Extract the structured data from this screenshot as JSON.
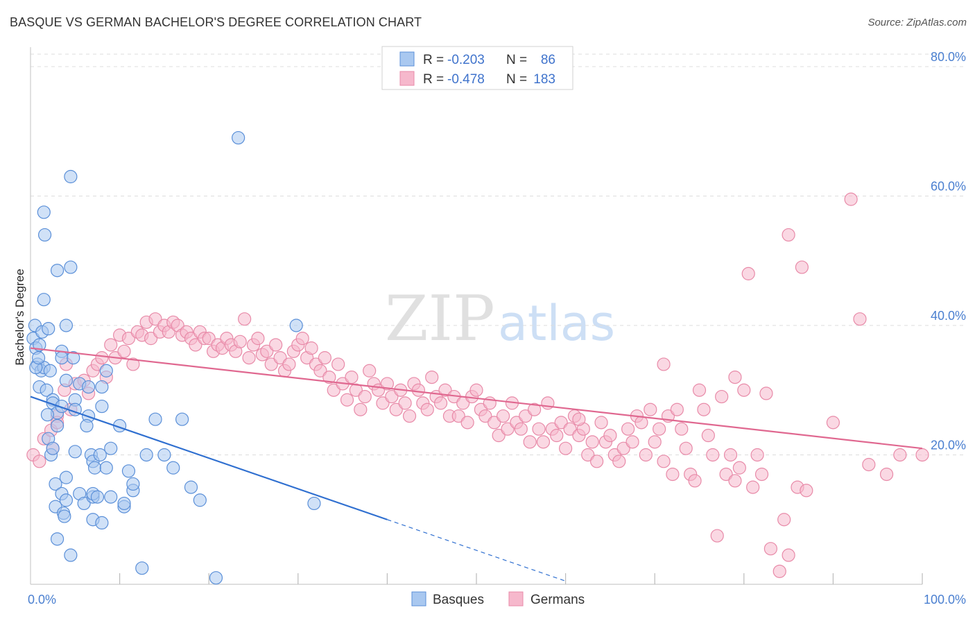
{
  "header": {
    "title": "BASQUE VS GERMAN BACHELOR'S DEGREE CORRELATION CHART",
    "source": "Source: ZipAtlas.com"
  },
  "watermark": {
    "zip": "ZIP",
    "atlas": "atlas"
  },
  "colors": {
    "basques_fill": "#a9c8f0",
    "basques_stroke": "#5a8fd8",
    "basques_line": "#2f6fd0",
    "germans_fill": "#f6b8cc",
    "germans_stroke": "#e88aa8",
    "germans_line": "#e06890",
    "tick_blue": "#4a7fd0"
  },
  "stats_legend": {
    "rows": [
      {
        "r_label": "R =",
        "r_value": "-0.203",
        "n_label": "N =",
        "n_value": "86"
      },
      {
        "r_label": "R =",
        "r_value": "-0.478",
        "n_label": "N =",
        "n_value": "183"
      }
    ]
  },
  "chart_data": {
    "type": "scatter",
    "title": "BASQUE VS GERMAN BACHELOR'S DEGREE CORRELATION CHART",
    "xlabel": "",
    "ylabel": "Bachelor's Degree",
    "xlim": [
      0,
      100
    ],
    "ylim": [
      0,
      83
    ],
    "x_tick_labels": [
      "0.0%",
      "100.0%"
    ],
    "y_ticks": [
      20,
      40,
      60,
      80
    ],
    "y_tick_labels": [
      "20.0%",
      "40.0%",
      "60.0%",
      "80.0%"
    ],
    "grid": true,
    "legend_position": "bottom",
    "series": [
      {
        "name": "Basques",
        "trend": {
          "x0": 0,
          "y0": 29.0,
          "x1": 40,
          "y1": 10.0,
          "dashed_to_x": 60
        },
        "points": [
          [
            0.3,
            38
          ],
          [
            0.5,
            40
          ],
          [
            0.6,
            36.5
          ],
          [
            0.8,
            34
          ],
          [
            1,
            37
          ],
          [
            1,
            30.5
          ],
          [
            1.2,
            33
          ],
          [
            1.3,
            39
          ],
          [
            1.5,
            44
          ],
          [
            1.5,
            33.5
          ],
          [
            1.5,
            57.5
          ],
          [
            1.6,
            54
          ],
          [
            1.8,
            30
          ],
          [
            2,
            39.5
          ],
          [
            2,
            22.5
          ],
          [
            2.2,
            33
          ],
          [
            2.3,
            20
          ],
          [
            2.5,
            28.5
          ],
          [
            2.5,
            28
          ],
          [
            2.5,
            21
          ],
          [
            2.8,
            15.5
          ],
          [
            2.8,
            12
          ],
          [
            3,
            26.5
          ],
          [
            3,
            48.5
          ],
          [
            3,
            24.5
          ],
          [
            3.5,
            36
          ],
          [
            3.5,
            14
          ],
          [
            3.7,
            11
          ],
          [
            3.8,
            10.5
          ],
          [
            4,
            16.5
          ],
          [
            4,
            13
          ],
          [
            4,
            31.5
          ],
          [
            3.5,
            35
          ],
          [
            3.5,
            27.5
          ],
          [
            4,
            40
          ],
          [
            4.5,
            63
          ],
          [
            4.5,
            4.5
          ],
          [
            4.5,
            49
          ],
          [
            5,
            28.5
          ],
          [
            5,
            27
          ],
          [
            5,
            20.5
          ],
          [
            5.5,
            14
          ],
          [
            6,
            12.5
          ],
          [
            5.5,
            31
          ],
          [
            6.5,
            30.5
          ],
          [
            6.5,
            26
          ],
          [
            6.3,
            24.5
          ],
          [
            6.8,
            20
          ],
          [
            7,
            19
          ],
          [
            7.2,
            18
          ],
          [
            7,
            13.5
          ],
          [
            7,
            10
          ],
          [
            7,
            14
          ],
          [
            7.5,
            13.5
          ],
          [
            7.8,
            20
          ],
          [
            8,
            27.5
          ],
          [
            8,
            30.5
          ],
          [
            8.5,
            33
          ],
          [
            8.5,
            18
          ],
          [
            8,
            9.5
          ],
          [
            9,
            21
          ],
          [
            9,
            13.5
          ],
          [
            10,
            24.5
          ],
          [
            10.5,
            12
          ],
          [
            10.5,
            12.5
          ],
          [
            11,
            17.5
          ],
          [
            11.5,
            14.5
          ],
          [
            11.5,
            15.5
          ],
          [
            12.5,
            2.5
          ],
          [
            13,
            20
          ],
          [
            14,
            25.5
          ],
          [
            15,
            20
          ],
          [
            16,
            18
          ],
          [
            17,
            25.5
          ],
          [
            18,
            15
          ],
          [
            19,
            13
          ],
          [
            20.8,
            1
          ],
          [
            23.3,
            69
          ],
          [
            29.8,
            40
          ],
          [
            31.8,
            12.5
          ],
          [
            3,
            7
          ],
          [
            0.6,
            33.5
          ],
          [
            1.9,
            26.2
          ],
          [
            4.8,
            35
          ],
          [
            0.9,
            35
          ]
        ]
      },
      {
        "name": "Germans",
        "trend": {
          "x0": 0,
          "y0": 36.5,
          "x1": 100,
          "y1": 21.0
        },
        "points": [
          [
            0.3,
            20
          ],
          [
            1,
            19
          ],
          [
            1.5,
            22.5
          ],
          [
            2.3,
            23.8
          ],
          [
            2.5,
            21
          ],
          [
            3,
            26
          ],
          [
            3,
            25
          ],
          [
            3.8,
            30
          ],
          [
            4,
            34
          ],
          [
            4.5,
            27
          ],
          [
            5,
            31
          ],
          [
            6,
            31.5
          ],
          [
            6.5,
            29.5
          ],
          [
            7,
            33
          ],
          [
            7.5,
            34
          ],
          [
            8,
            35
          ],
          [
            8.5,
            32
          ],
          [
            9,
            37
          ],
          [
            9.5,
            35
          ],
          [
            10,
            38.5
          ],
          [
            10.5,
            36
          ],
          [
            11,
            38
          ],
          [
            11.5,
            34
          ],
          [
            12,
            39
          ],
          [
            12.5,
            38.5
          ],
          [
            13,
            40.5
          ],
          [
            13.5,
            38
          ],
          [
            14,
            41
          ],
          [
            14.5,
            39
          ],
          [
            15,
            40
          ],
          [
            15.5,
            39
          ],
          [
            16,
            40.5
          ],
          [
            16.5,
            40
          ],
          [
            17,
            38.5
          ],
          [
            17.5,
            39
          ],
          [
            18,
            38
          ],
          [
            18.5,
            37
          ],
          [
            19,
            39
          ],
          [
            19.5,
            38
          ],
          [
            20,
            38
          ],
          [
            20.5,
            36
          ],
          [
            21,
            37
          ],
          [
            21.5,
            36.5
          ],
          [
            22,
            38
          ],
          [
            22.5,
            37
          ],
          [
            23,
            36
          ],
          [
            23.5,
            37.5
          ],
          [
            24,
            41
          ],
          [
            24.5,
            35
          ],
          [
            25,
            37
          ],
          [
            25.5,
            38
          ],
          [
            26,
            35.5
          ],
          [
            26.5,
            36
          ],
          [
            27,
            34
          ],
          [
            27.5,
            37
          ],
          [
            28,
            35
          ],
          [
            28.5,
            33
          ],
          [
            29,
            34
          ],
          [
            29.5,
            36
          ],
          [
            30,
            37
          ],
          [
            30.5,
            38
          ],
          [
            31,
            35
          ],
          [
            31.5,
            36.5
          ],
          [
            32,
            34
          ],
          [
            32.5,
            33
          ],
          [
            33,
            35
          ],
          [
            33.5,
            32
          ],
          [
            34,
            30
          ],
          [
            34.5,
            34
          ],
          [
            35,
            31
          ],
          [
            35.5,
            28.5
          ],
          [
            36,
            32
          ],
          [
            36.5,
            30
          ],
          [
            37,
            27
          ],
          [
            37.5,
            29
          ],
          [
            38,
            33
          ],
          [
            38.5,
            31
          ],
          [
            39,
            30
          ],
          [
            39.5,
            28
          ],
          [
            40,
            31
          ],
          [
            40.5,
            29
          ],
          [
            41,
            27
          ],
          [
            41.5,
            30
          ],
          [
            42,
            28
          ],
          [
            42.5,
            26
          ],
          [
            43,
            31
          ],
          [
            43.5,
            30
          ],
          [
            44,
            28
          ],
          [
            44.5,
            27
          ],
          [
            45,
            32
          ],
          [
            45.5,
            29
          ],
          [
            46,
            28
          ],
          [
            46.5,
            30
          ],
          [
            47,
            26
          ],
          [
            47.5,
            29
          ],
          [
            48,
            26
          ],
          [
            48.5,
            28
          ],
          [
            49,
            25
          ],
          [
            49.5,
            29
          ],
          [
            50,
            30
          ],
          [
            50.5,
            27
          ],
          [
            51,
            26
          ],
          [
            51.5,
            28
          ],
          [
            52,
            25
          ],
          [
            52.5,
            23
          ],
          [
            53,
            26
          ],
          [
            53.5,
            24
          ],
          [
            54,
            28
          ],
          [
            54.5,
            25
          ],
          [
            55,
            24
          ],
          [
            55.5,
            26
          ],
          [
            56,
            22
          ],
          [
            56.5,
            27
          ],
          [
            57,
            24
          ],
          [
            57.5,
            22
          ],
          [
            58,
            28
          ],
          [
            58.5,
            24
          ],
          [
            59,
            23
          ],
          [
            59.5,
            25
          ],
          [
            60,
            21
          ],
          [
            60.5,
            24
          ],
          [
            61,
            26
          ],
          [
            61.5,
            23
          ],
          [
            62,
            24
          ],
          [
            62.5,
            20
          ],
          [
            63,
            22
          ],
          [
            63.5,
            19
          ],
          [
            64,
            25
          ],
          [
            64.5,
            22
          ],
          [
            65,
            23
          ],
          [
            65.5,
            20
          ],
          [
            66,
            19
          ],
          [
            66.5,
            21
          ],
          [
            67,
            24
          ],
          [
            67.5,
            22
          ],
          [
            68,
            26
          ],
          [
            68.5,
            25
          ],
          [
            69,
            20
          ],
          [
            69.5,
            27
          ],
          [
            70,
            22
          ],
          [
            70.5,
            24
          ],
          [
            71,
            19
          ],
          [
            71.5,
            26
          ],
          [
            72,
            17
          ],
          [
            72.5,
            27
          ],
          [
            73,
            24
          ],
          [
            73.5,
            21
          ],
          [
            74,
            17
          ],
          [
            74.5,
            16
          ],
          [
            75,
            30
          ],
          [
            75.5,
            27
          ],
          [
            76,
            23
          ],
          [
            76.5,
            20
          ],
          [
            77,
            7.5
          ],
          [
            77.5,
            29
          ],
          [
            78,
            17
          ],
          [
            78.5,
            20
          ],
          [
            79,
            32
          ],
          [
            79.5,
            18
          ],
          [
            80,
            30
          ],
          [
            80.5,
            48
          ],
          [
            81,
            15
          ],
          [
            81.5,
            20
          ],
          [
            82,
            17
          ],
          [
            82.5,
            29.5
          ],
          [
            83,
            5.5
          ],
          [
            84,
            2
          ],
          [
            84.5,
            10
          ],
          [
            85,
            4.5
          ],
          [
            85,
            54
          ],
          [
            86,
            15
          ],
          [
            86.5,
            49
          ],
          [
            87,
            14.5
          ],
          [
            90,
            25
          ],
          [
            92,
            59.5
          ],
          [
            93,
            41
          ],
          [
            94,
            18.5
          ],
          [
            96,
            17
          ],
          [
            97.5,
            20
          ],
          [
            100,
            20
          ],
          [
            71,
            34
          ],
          [
            79,
            16
          ],
          [
            61.5,
            25.5
          ]
        ]
      }
    ]
  },
  "bottom_legend": {
    "items": [
      "Basques",
      "Germans"
    ]
  }
}
